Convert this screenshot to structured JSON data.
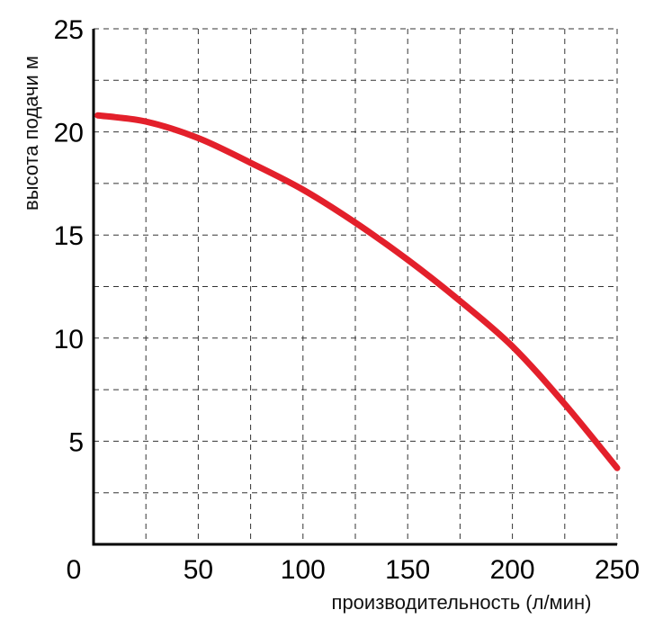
{
  "chart_data": {
    "type": "line",
    "title": "",
    "xlabel": "производительность (л/мин)",
    "ylabel": "высота подачи м",
    "xlim": [
      0,
      250
    ],
    "ylim": [
      0,
      25
    ],
    "x_ticks": [
      0,
      50,
      100,
      150,
      200,
      250
    ],
    "x_tick_labels": [
      "0",
      "50",
      "100",
      "150",
      "200",
      "250"
    ],
    "y_ticks": [
      5,
      10,
      15,
      20,
      25
    ],
    "y_tick_labels": [
      "5",
      "10",
      "15",
      "20",
      "25"
    ],
    "x_grid_step": 25,
    "y_grid_step": 2.5,
    "grid": true,
    "grid_style": "dashed",
    "legend": "none",
    "series": [
      {
        "color": "#e3202b",
        "x": [
          2,
          25,
          50,
          75,
          100,
          125,
          150,
          175,
          200,
          225,
          250
        ],
        "y": [
          20.8,
          20.5,
          19.7,
          18.5,
          17.2,
          15.6,
          13.8,
          11.8,
          9.6,
          6.8,
          3.7
        ]
      }
    ]
  }
}
